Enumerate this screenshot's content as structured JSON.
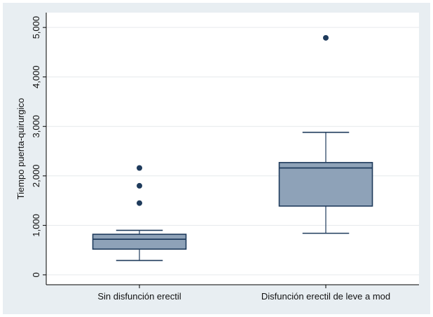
{
  "chart_data": {
    "type": "box",
    "ylabel": "Tiempo puerta-quirurgico",
    "xlabel": "",
    "title": "",
    "ylim": [
      -200,
      5300
    ],
    "yticks": [
      0,
      1000,
      2000,
      3000,
      4000,
      5000
    ],
    "ytick_labels": [
      "0",
      "1,000",
      "2,000",
      "3,000",
      "4,000",
      "5,000"
    ],
    "grid": true,
    "box_fill": "#8ea2b8",
    "box_stroke": "#1f3b5c",
    "outlier_color": "#1f3b5c",
    "plot_bg": "#ffffff",
    "outer_bg": "#e8eef2",
    "categories": [
      "Sin disfunción erectil",
      "Disfunción erectil de leve a mod"
    ],
    "boxes": [
      {
        "category": "Sin disfunción erectil",
        "whisker_low": 290,
        "q1": 520,
        "median": 720,
        "q3": 820,
        "whisker_high": 900,
        "outliers": [
          1450,
          1800,
          2160
        ]
      },
      {
        "category": "Disfunción erectil de leve a mod",
        "whisker_low": 840,
        "q1": 1390,
        "median": 2160,
        "q3": 2270,
        "whisker_high": 2880,
        "outliers": [
          4790
        ]
      }
    ]
  }
}
